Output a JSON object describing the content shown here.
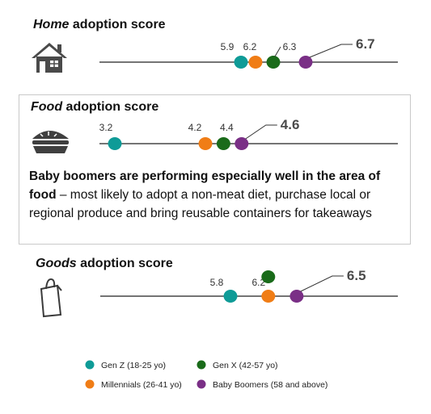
{
  "colors": {
    "gen_z": "#0f9b97",
    "millennials": "#f07d16",
    "gen_x": "#1a6b1a",
    "baby_boomers": "#7a2f86",
    "line": "#222222"
  },
  "sections": [
    {
      "title_emph": "Home",
      "title_rest": " adoption score",
      "icon": "house-icon"
    },
    {
      "title_emph": "Food",
      "title_rest": " adoption score",
      "icon": "pie-icon"
    },
    {
      "title_emph": "Goods",
      "title_rest": " adoption score",
      "icon": "shopping-bag-icon"
    }
  ],
  "description": {
    "bold": "Baby boomers are performing especially well in the area of food",
    "rest": " – most likely to adopt a non-meat diet, purchase local or regional produce and bring reusable containers for takeaways"
  },
  "legend": [
    {
      "label": "Gen Z (18-25 yo)",
      "color_key": "gen_z"
    },
    {
      "label": "Gen X (42-57 yo)",
      "color_key": "gen_x"
    },
    {
      "label": "Millennials (26-41 yo)",
      "color_key": "millennials"
    },
    {
      "label": "Baby Boomers (58 and above)",
      "color_key": "baby_boomers"
    }
  ],
  "chart_data": [
    {
      "type": "scatter",
      "title": "Home adoption score",
      "series": [
        {
          "name": "Gen Z (18-25 yo)",
          "value": 5.9,
          "label": "5.9"
        },
        {
          "name": "Millennials (26-41 yo)",
          "value": 6.2,
          "label": "6.2"
        },
        {
          "name": "Gen X (42-57 yo)",
          "value": 6.3,
          "label": "6.3"
        },
        {
          "name": "Baby Boomers (58 and above)",
          "value": 6.7,
          "label": "6.7"
        }
      ],
      "xlim": [
        5.0,
        7.5
      ]
    },
    {
      "type": "scatter",
      "title": "Food adoption score",
      "series": [
        {
          "name": "Gen Z (18-25 yo)",
          "value": 3.2,
          "label": "3.2"
        },
        {
          "name": "Millennials (26-41 yo)",
          "value": 4.2,
          "label": "4.2"
        },
        {
          "name": "Gen X (42-57 yo)",
          "value": 4.4,
          "label": "4.4"
        },
        {
          "name": "Baby Boomers (58 and above)",
          "value": 4.6,
          "label": "4.6"
        }
      ],
      "xlim": [
        3.0,
        6.5
      ]
    },
    {
      "type": "scatter",
      "title": "Goods adoption score",
      "series": [
        {
          "name": "Gen Z (18-25 yo)",
          "value": 5.8,
          "label": "5.8"
        },
        {
          "name": "Millennials (26-41 yo)",
          "value": 6.2,
          "label": "6.2"
        },
        {
          "name": "Gen X (42-57 yo)",
          "value": 6.2,
          "label": ""
        },
        {
          "name": "Baby Boomers (58 and above)",
          "value": 6.5,
          "label": "6.5"
        }
      ],
      "xlim": [
        4.2,
        7.7
      ]
    }
  ]
}
